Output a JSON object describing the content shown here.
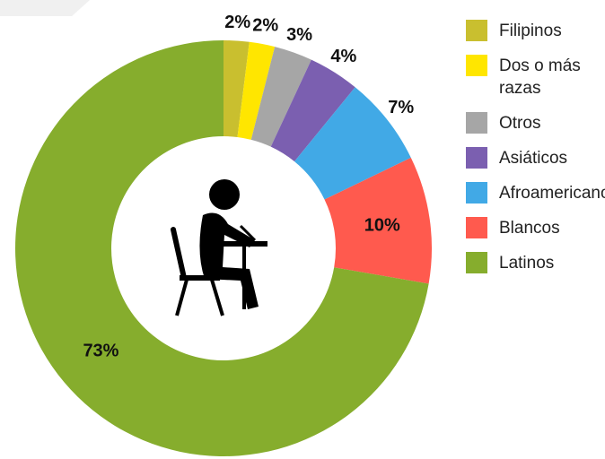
{
  "chart_data": {
    "type": "donut",
    "categories": [
      "Filipinos",
      "Dos o más razas",
      "Otros",
      "Asiáticos",
      "Afroamericanos",
      "Blancos",
      "Latinos"
    ],
    "values": [
      2,
      2,
      3,
      4,
      7,
      10,
      73
    ],
    "value_labels": [
      "2%",
      "2%",
      "3%",
      "4%",
      "7%",
      "10%",
      "73%"
    ],
    "colors": [
      "#c9bf2f",
      "#ffe600",
      "#a6a6a6",
      "#7b5fb0",
      "#41a9e6",
      "#ff5a4e",
      "#86ad2d"
    ],
    "legend": "right"
  }
}
